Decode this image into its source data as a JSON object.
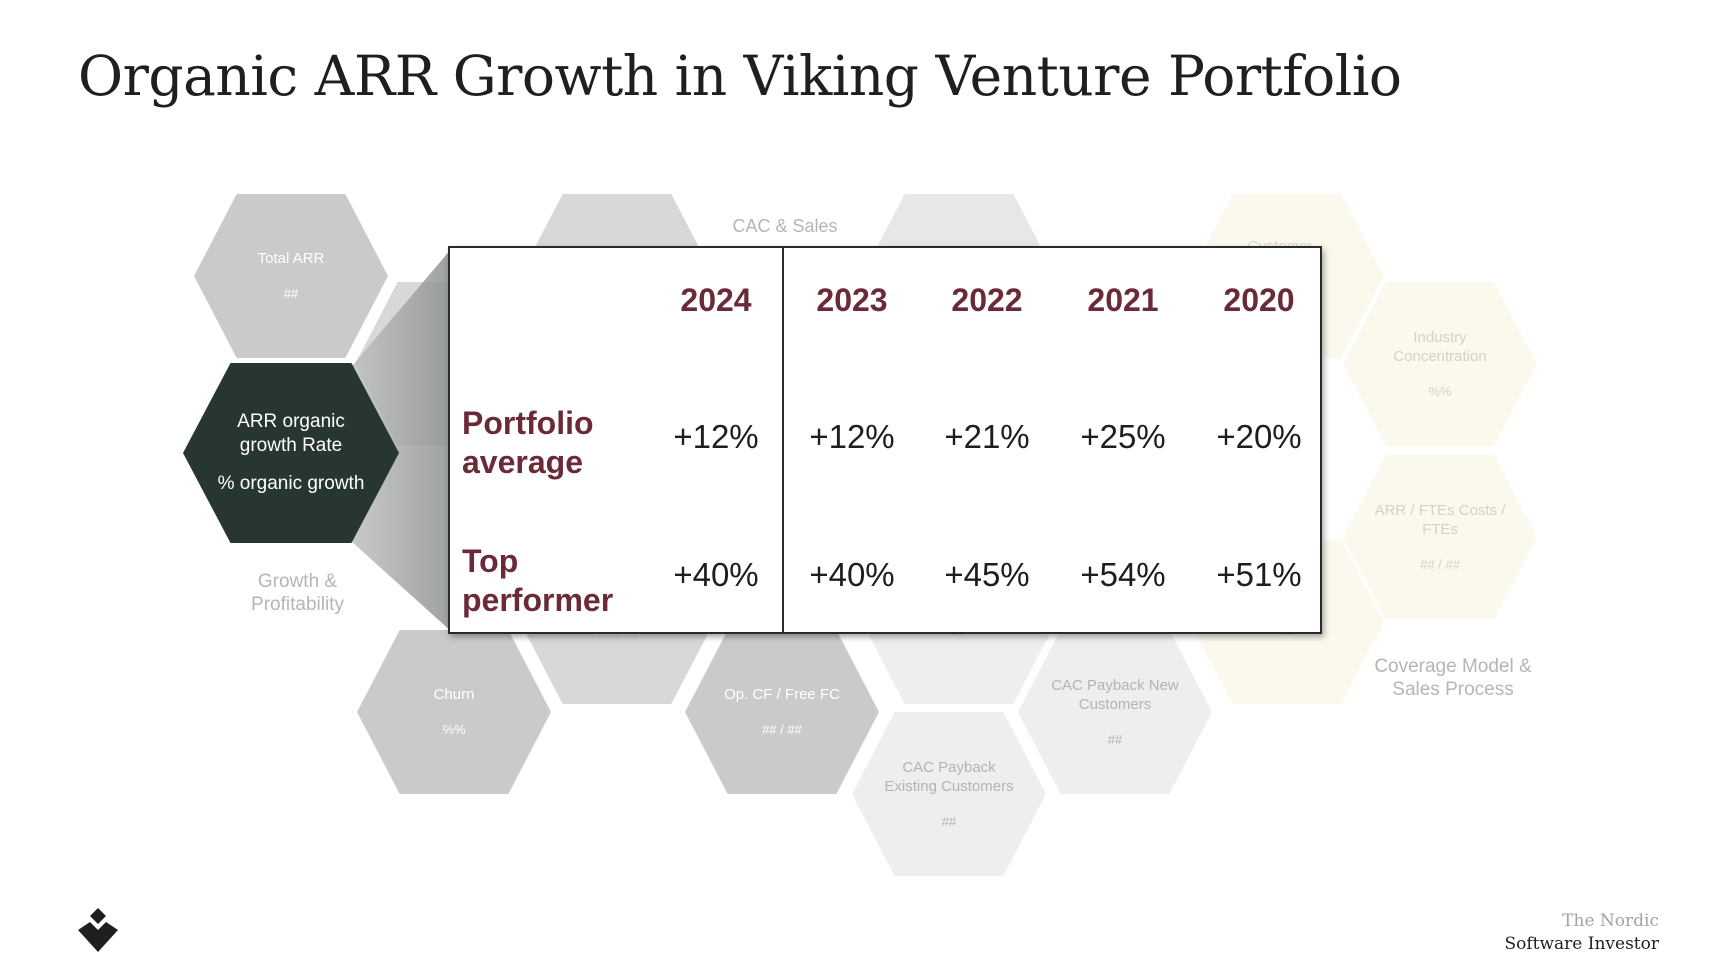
{
  "title": "Organic ARR Growth in Viking Venture Portfolio",
  "hexagons": {
    "total_arr": {
      "label": "Total ARR",
      "value": "##"
    },
    "arr_organic": {
      "label": "ARR organic growth Rate",
      "value": "% organic growth"
    },
    "churn": {
      "label": "Churn",
      "value": "%%"
    },
    "left_lower": {
      "value": "## / %%"
    },
    "opcf": {
      "label": "Op. CF / Free FC",
      "value": "## / ##"
    },
    "mid_lower": {
      "value": "##"
    },
    "cac_existing": {
      "label": "CAC Payback Existing Customers",
      "value": "##"
    },
    "cac_new": {
      "label": "CAC Payback New Customers",
      "value": "##"
    },
    "right_lower": {
      "value": "##"
    },
    "industry": {
      "label": "Industry Concentration",
      "value": "%%"
    },
    "arr_ftes": {
      "label": "ARR / FTEs Costs / FTEs",
      "value": "## / ##"
    }
  },
  "categories": {
    "growth": "Growth & Profitability",
    "cac": "CAC & Sales Efficiency",
    "customer": "Customer",
    "coverage": "Coverage Model & Sales Process"
  },
  "table": {
    "years": [
      "2024",
      "2023",
      "2022",
      "2021",
      "2020"
    ],
    "rows": [
      {
        "label": "Portfolio average",
        "values": [
          "+12%",
          "+12%",
          "+21%",
          "+25%",
          "+20%"
        ]
      },
      {
        "label": "Top performer",
        "values": [
          "+40%",
          "+40%",
          "+45%",
          "+54%",
          "+51%"
        ]
      }
    ]
  },
  "brand": {
    "line1": "The Nordic",
    "line2": "Software Investor"
  },
  "colors": {
    "accent": "#6b2a38",
    "dark_hex": "#273630"
  }
}
